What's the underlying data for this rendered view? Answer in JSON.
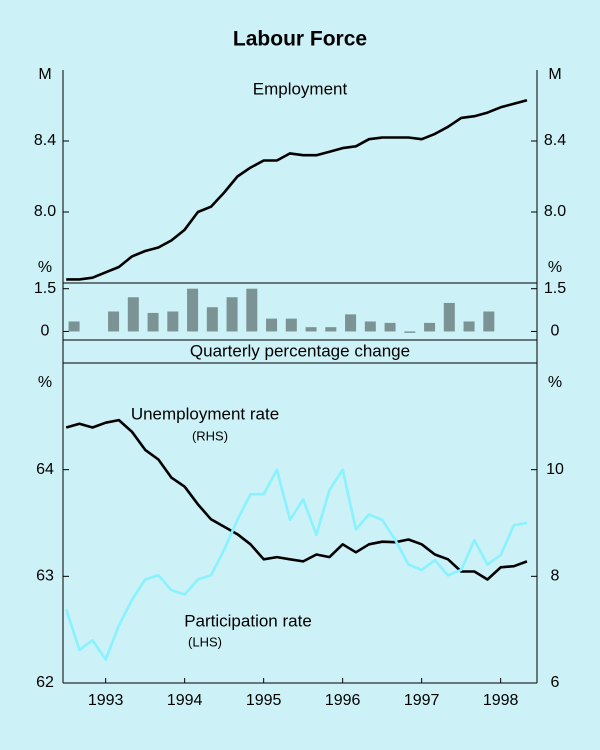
{
  "title": "Labour Force",
  "chart_data": [
    {
      "type": "line",
      "title": "Employment",
      "y_unit": "M",
      "xlim": [
        1992.96,
        1998.96
      ],
      "ylim": [
        7.6,
        8.8
      ],
      "yticks": [
        {
          "value": 8,
          "label": "8.0"
        },
        8.4
      ],
      "y2lim": [
        7.6,
        8.8
      ],
      "y2ticks": [
        {
          "value": 8,
          "label": "8.0"
        },
        8.4
      ],
      "x": [
        1993,
        1993.167,
        1993.333,
        1993.5,
        1993.667,
        1993.833,
        1994,
        1994.167,
        1994.333,
        1994.5,
        1994.667,
        1994.833,
        1995,
        1995.167,
        1995.333,
        1995.5,
        1995.667,
        1995.833,
        1996,
        1996.167,
        1996.333,
        1996.5,
        1996.667,
        1996.833,
        1997,
        1997.167,
        1997.333,
        1997.5,
        1997.667,
        1997.833,
        1998,
        1998.167,
        1998.333,
        1998.5,
        1998.667,
        1998.833
      ],
      "series": [
        {
          "color": "#000000",
          "values": [
            7.62,
            7.62,
            7.63,
            7.66,
            7.69,
            7.75,
            7.78,
            7.8,
            7.84,
            7.9,
            8.0,
            8.03,
            8.11,
            8.2,
            8.25,
            8.29,
            8.29,
            8.33,
            8.32,
            8.32,
            8.34,
            8.36,
            8.37,
            8.41,
            8.42,
            8.42,
            8.42,
            8.41,
            8.44,
            8.48,
            8.53,
            8.54,
            8.56,
            8.59,
            8.61,
            8.63
          ]
        }
      ]
    },
    {
      "type": "bar",
      "title": "Quarterly percentage change",
      "y_unit": "%",
      "xlim": [
        1992.96,
        1998.96
      ],
      "ylim": [
        -0.3,
        1.7
      ],
      "yticks": [
        0,
        1.5
      ],
      "y2lim": [
        -0.3,
        1.7
      ],
      "y2ticks": [
        0,
        1.5
      ],
      "x": [
        1993.1,
        1993.35,
        1993.6,
        1993.85,
        1994.1,
        1994.35,
        1994.6,
        1994.85,
        1995.1,
        1995.35,
        1995.6,
        1995.85,
        1996.1,
        1996.35,
        1996.6,
        1996.85,
        1997.1,
        1997.35,
        1997.6,
        1997.85,
        1998.1,
        1998.35
      ],
      "series": [
        {
          "color": "#7b9394",
          "values": [
            0.35,
            0,
            0.7,
            1.2,
            0.65,
            0.7,
            1.5,
            0.85,
            1.2,
            1.5,
            0.45,
            0.45,
            0.15,
            0.15,
            0.6,
            0.35,
            0.3,
            -0.05,
            0.3,
            1.0,
            0.35,
            0.7
          ]
        }
      ]
    },
    {
      "type": "line",
      "y_unit": "%",
      "xlim": [
        1992.96,
        1998.96
      ],
      "ylim": [
        62,
        65
      ],
      "yticks": [
        62,
        63,
        64
      ],
      "y2lim": [
        6,
        12
      ],
      "y2ticks": [
        6,
        8,
        10
      ],
      "xticks": [
        {
          "value": 1993.5,
          "label": "1993"
        },
        {
          "value": 1994.5,
          "label": "1994"
        },
        {
          "value": 1995.5,
          "label": "1995"
        },
        {
          "value": 1996.5,
          "label": "1996"
        },
        {
          "value": 1997.5,
          "label": "1997"
        },
        {
          "value": 1998.5,
          "label": "1998"
        }
      ],
      "x": [
        1993,
        1993.167,
        1993.333,
        1993.5,
        1993.667,
        1993.833,
        1994,
        1994.167,
        1994.333,
        1994.5,
        1994.667,
        1994.833,
        1995,
        1995.167,
        1995.333,
        1995.5,
        1995.667,
        1995.833,
        1996,
        1996.167,
        1996.333,
        1996.5,
        1996.667,
        1996.833,
        1997,
        1997.167,
        1997.333,
        1997.5,
        1997.667,
        1997.833,
        1998,
        1998.167,
        1998.333,
        1998.5,
        1998.667,
        1998.833
      ],
      "series": [
        {
          "name": "Unemployment rate",
          "note": "(RHS)",
          "axis": "y2",
          "color": "#000000",
          "values": [
            10.79,
            10.86,
            10.79,
            10.88,
            10.93,
            10.71,
            10.37,
            10.19,
            9.85,
            9.68,
            9.35,
            9.07,
            8.93,
            8.79,
            8.6,
            8.32,
            8.36,
            8.32,
            8.28,
            8.41,
            8.36,
            8.6,
            8.45,
            8.6,
            8.65,
            8.64,
            8.69,
            8.6,
            8.41,
            8.32,
            8.09,
            8.09,
            7.94,
            8.17,
            8.19,
            8.28
          ]
        },
        {
          "name": "Participation rate",
          "note": "(LHS)",
          "color": "#88f2ff",
          "values": [
            62.69,
            62.31,
            62.4,
            62.22,
            62.54,
            62.78,
            62.97,
            63.01,
            62.87,
            62.83,
            62.97,
            63.01,
            63.25,
            63.53,
            63.77,
            63.77,
            64.0,
            63.53,
            63.72,
            63.39,
            63.81,
            64.0,
            63.44,
            63.58,
            63.53,
            63.34,
            63.11,
            63.06,
            63.15,
            63.01,
            63.06,
            63.34,
            63.11,
            63.2,
            63.48,
            63.5
          ]
        }
      ]
    }
  ]
}
